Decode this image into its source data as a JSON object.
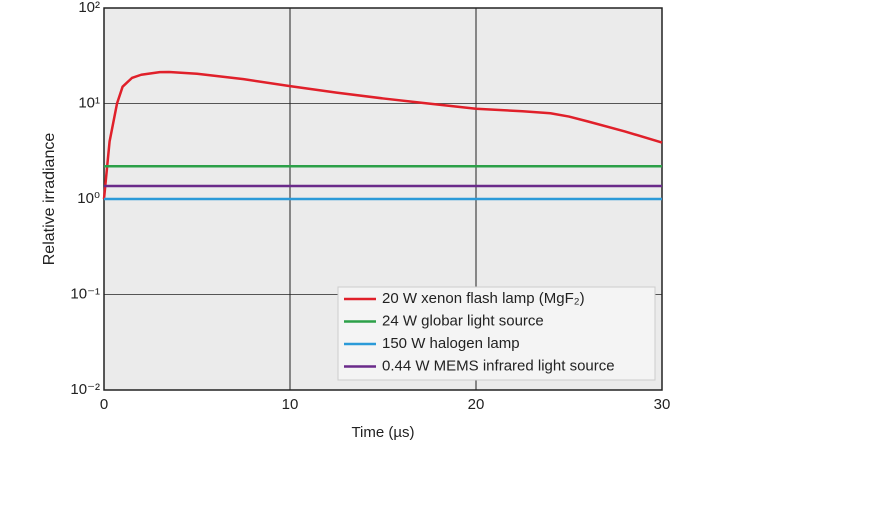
{
  "chart_data": {
    "type": "line",
    "x_label": "Time (µs)",
    "y_label": "Relative irradiance",
    "xlim": [
      0,
      30
    ],
    "xticks": [
      0,
      10,
      20,
      30
    ],
    "ylim": [
      0.01,
      100
    ],
    "log_y": true,
    "yticks": [
      {
        "value": 0.01,
        "label": "10⁻²"
      },
      {
        "value": 0.1,
        "label": "10⁻¹"
      },
      {
        "value": 1,
        "label": "10⁰"
      },
      {
        "value": 10,
        "label": "10¹"
      },
      {
        "value": 100,
        "label": "10²"
      }
    ],
    "grid": true,
    "legend": "lower right",
    "series": [
      {
        "name": "20 W xenon flash lamp (MgF₂)",
        "color": "#e0202a",
        "x": [
          0,
          0.3,
          0.7,
          1,
          1.5,
          2,
          3,
          3.5,
          5,
          7.5,
          10,
          12.5,
          15,
          17,
          20,
          22.5,
          24,
          25,
          26,
          28,
          30
        ],
        "values": [
          1,
          4,
          10,
          15,
          18.5,
          20,
          21.3,
          21.4,
          20.5,
          18,
          15.2,
          13,
          11.3,
          10.2,
          8.8,
          8.3,
          7.9,
          7.3,
          6.5,
          5.1,
          3.9
        ]
      },
      {
        "name": "24 W globar light source",
        "color": "#2ca048",
        "x": [
          0,
          30
        ],
        "values": [
          2.2,
          2.2
        ]
      },
      {
        "name": "150 W halogen lamp",
        "color": "#2a9ad8",
        "x": [
          0,
          30
        ],
        "values": [
          1,
          1
        ]
      },
      {
        "name": "0.44 W MEMS infrared light source",
        "color": "#6a2a8a",
        "x": [
          0,
          30
        ],
        "values": [
          1.37,
          1.37
        ]
      }
    ]
  }
}
